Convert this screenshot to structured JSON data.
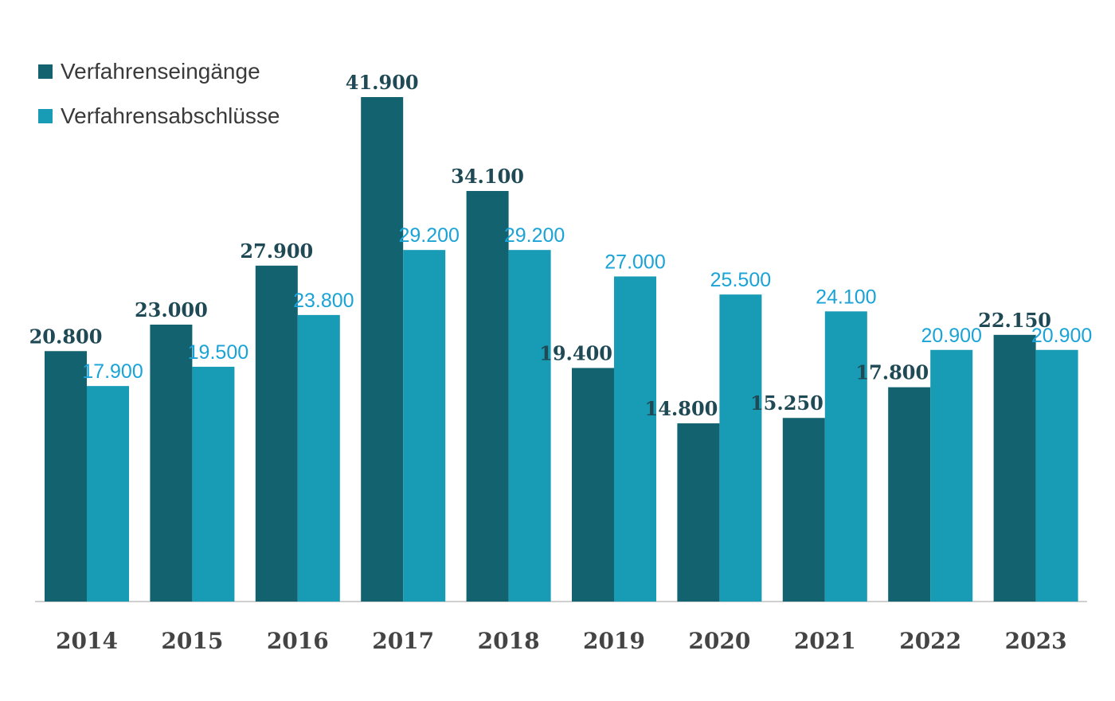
{
  "chart_data": {
    "type": "bar",
    "title": "",
    "xlabel": "",
    "ylabel": "",
    "ylim": [
      0,
      45000
    ],
    "grid": false,
    "legend_position": "top-left",
    "categories": [
      "2014",
      "2015",
      "2016",
      "2017",
      "2018",
      "2019",
      "2020",
      "2021",
      "2022",
      "2023"
    ],
    "series": [
      {
        "name": "Verfahrenseingänge",
        "color": "#12626f",
        "label_color": "#1f4a55",
        "values": [
          20800,
          23000,
          27900,
          41900,
          34100,
          19400,
          14800,
          15250,
          17800,
          22150
        ],
        "labels": [
          "20.800",
          "23.000",
          "27.900",
          "41.900",
          "34.100",
          "19.400",
          "14.800",
          "15.250",
          "17.800",
          "22.150"
        ]
      },
      {
        "name": "Verfahrensabschlüsse",
        "color": "#189bb5",
        "label_color": "#1aa3d6",
        "values": [
          17900,
          19500,
          23800,
          29200,
          29200,
          27000,
          25500,
          24100,
          20900,
          20900
        ],
        "labels": [
          "17.900",
          "19.500",
          "23.800",
          "29.200",
          "29.200",
          "27.000",
          "25.500",
          "24.100",
          "20.900",
          "20.900"
        ]
      }
    ]
  }
}
